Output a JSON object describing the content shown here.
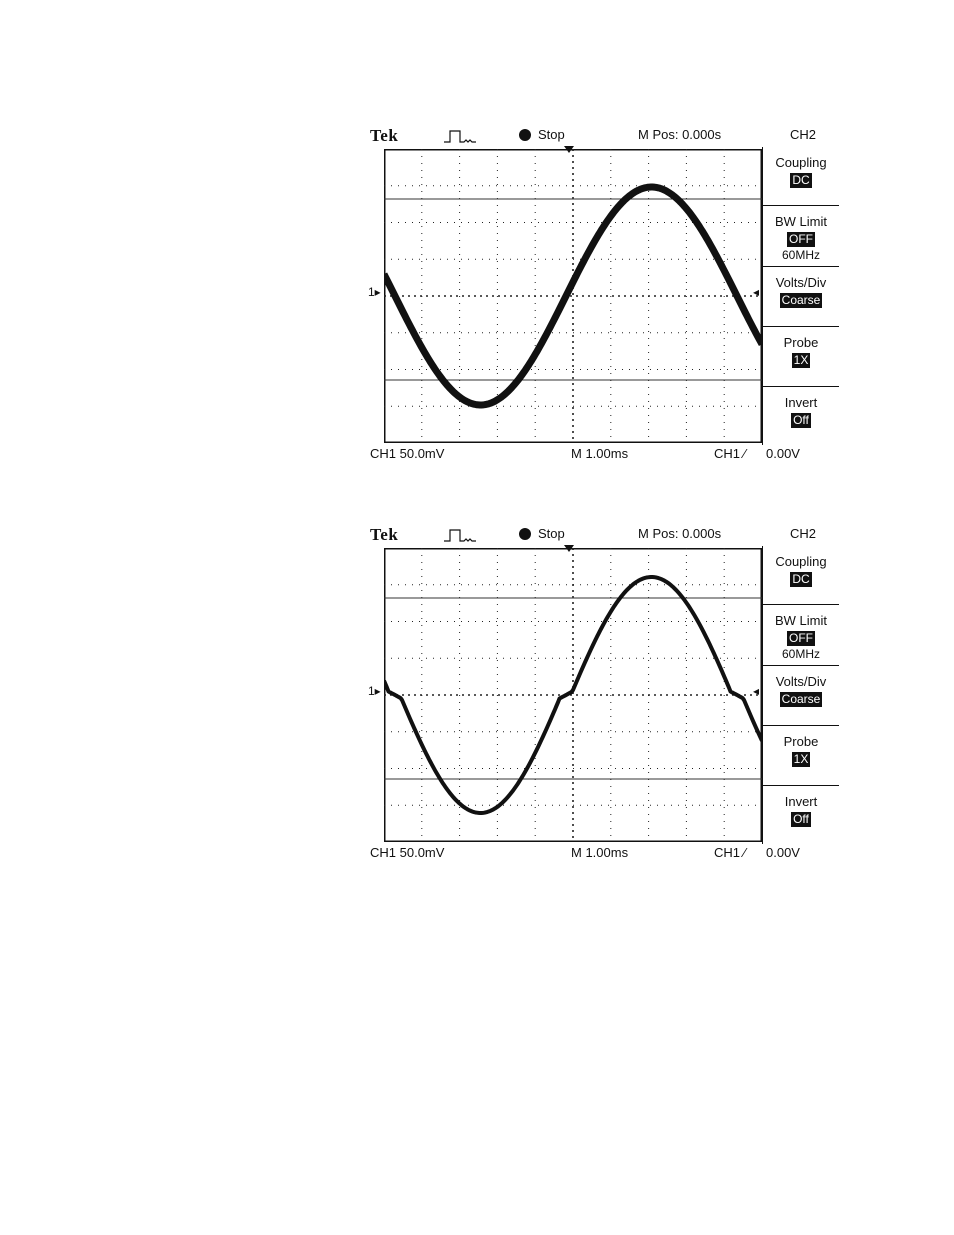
{
  "scopes": [
    {
      "brand": "Tek",
      "run_state": "Stop",
      "m_pos": "M Pos: 0.000s",
      "channel_select": "CH2",
      "ch1_marker": "1▸",
      "trigger_level_marker": "◂",
      "menu": [
        {
          "label": "Coupling",
          "value": "DC",
          "extra": ""
        },
        {
          "label": "BW Limit",
          "value": "OFF",
          "extra": "60MHz"
        },
        {
          "label": "Volts/Div",
          "value": "Coarse",
          "extra": ""
        },
        {
          "label": "Probe",
          "value": "1X",
          "extra": ""
        },
        {
          "label": "Invert",
          "value": "Off",
          "extra": ""
        }
      ],
      "footer": {
        "ch": "CH1   50.0mV",
        "timebase": "M 1.00ms",
        "trigger": "CH1 ⁄",
        "trigger_level": "0.00V"
      },
      "waveform": "sine"
    },
    {
      "brand": "Tek",
      "run_state": "Stop",
      "m_pos": "M Pos: 0.000s",
      "channel_select": "CH2",
      "ch1_marker": "1▸",
      "trigger_level_marker": "◂",
      "menu": [
        {
          "label": "Coupling",
          "value": "DC",
          "extra": ""
        },
        {
          "label": "BW Limit",
          "value": "OFF",
          "extra": "60MHz"
        },
        {
          "label": "Volts/Div",
          "value": "Coarse",
          "extra": ""
        },
        {
          "label": "Probe",
          "value": "1X",
          "extra": ""
        },
        {
          "label": "Invert",
          "value": "Off",
          "extra": ""
        }
      ],
      "footer": {
        "ch": "CH1   50.0mV",
        "timebase": "M 1.00ms",
        "trigger": "CH1 ⁄",
        "trigger_level": "0.00V"
      },
      "waveform": "distorted-sine"
    }
  ]
}
